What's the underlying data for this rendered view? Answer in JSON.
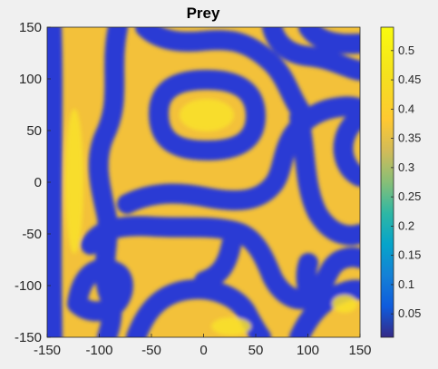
{
  "chart_data": {
    "type": "heatmap",
    "title": "Prey",
    "xlabel": "",
    "ylabel": "",
    "xlim": [
      -150,
      150
    ],
    "ylim": [
      -150,
      150
    ],
    "x_ticks": [
      "-150",
      "-100",
      "-50",
      "0",
      "50",
      "100",
      "150"
    ],
    "y_ticks": [
      "150",
      "100",
      "50",
      "0",
      "-50",
      "-100",
      "-150"
    ],
    "colorbar": {
      "min": 0.01,
      "max": 0.54,
      "ticks": [
        "0.5",
        "0.45",
        "0.4",
        "0.35",
        "0.3",
        "0.25",
        "0.2",
        "0.15",
        "0.1",
        "0.05"
      ],
      "colormap": "parula"
    },
    "colors": {
      "low": "#352a87",
      "mid": "#2fb8a1",
      "high": "#f9fb0e",
      "peak_band": "#f5c52e"
    },
    "pattern_description_visible": false
  }
}
